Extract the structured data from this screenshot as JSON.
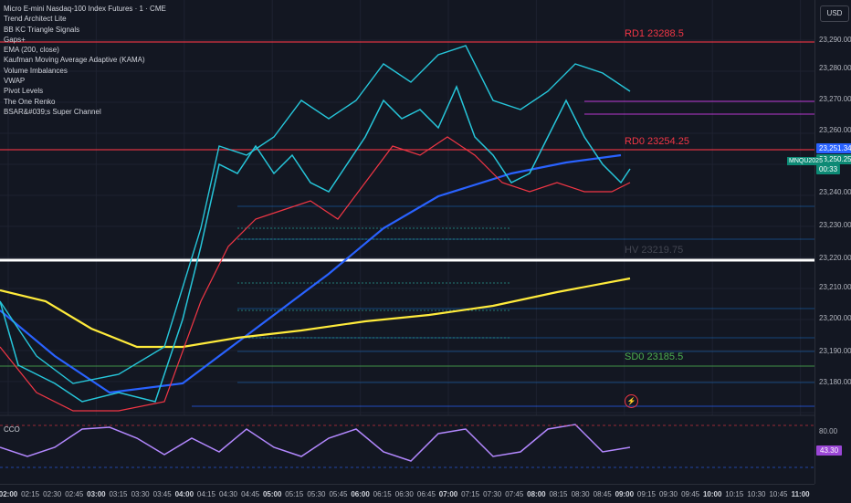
{
  "header": {
    "title": "Micro E-mini Nasdaq-100 Index Futures · 1 · CME",
    "currency_button": "USD"
  },
  "indicators": [
    "Trend Architect Lite",
    "BB KC Triangle Signals",
    "Gaps+",
    "EMA (200, close)",
    "Kaufman Moving Average Adaptive (KAMA)",
    "Volume Imbalances",
    "VWAP",
    "Pivot Levels",
    "The One Renko",
    "BSAR&#039;s Super Channel"
  ],
  "price_axis": {
    "ticks": [
      "23,290.00",
      "23,280.00",
      "23,270.00",
      "23,260.00",
      "23,250.00",
      "23,240.00",
      "23,230.00",
      "23,220.00",
      "23,210.00",
      "23,200.00",
      "23,190.00",
      "23,180.00"
    ],
    "tag_upper": "23,251.34",
    "tag_lower": "23,250.25",
    "countdown": "00:33",
    "symbol": "MNQU2025"
  },
  "levels": {
    "rd1": "RD1 23288.5",
    "rd0": "RD0 23254.25",
    "hv": "HV 23219.75",
    "sd0": "SD0 23185.5"
  },
  "time_axis": {
    "ticks": [
      {
        "label": "02:00",
        "bold": true
      },
      {
        "label": "02:15",
        "bold": false
      },
      {
        "label": "02:30",
        "bold": false
      },
      {
        "label": "02:45",
        "bold": false
      },
      {
        "label": "03:00",
        "bold": true
      },
      {
        "label": "03:15",
        "bold": false
      },
      {
        "label": "03:30",
        "bold": false
      },
      {
        "label": "03:45",
        "bold": false
      },
      {
        "label": "04:00",
        "bold": true
      },
      {
        "label": "04:15",
        "bold": false
      },
      {
        "label": "04:30",
        "bold": false
      },
      {
        "label": "04:45",
        "bold": false
      },
      {
        "label": "05:00",
        "bold": true
      },
      {
        "label": "05:15",
        "bold": false
      },
      {
        "label": "05:30",
        "bold": false
      },
      {
        "label": "05:45",
        "bold": false
      },
      {
        "label": "06:00",
        "bold": true
      },
      {
        "label": "06:15",
        "bold": false
      },
      {
        "label": "06:30",
        "bold": false
      },
      {
        "label": "06:45",
        "bold": false
      },
      {
        "label": "07:00",
        "bold": true
      },
      {
        "label": "07:15",
        "bold": false
      },
      {
        "label": "07:30",
        "bold": false
      },
      {
        "label": "07:45",
        "bold": false
      },
      {
        "label": "08:00",
        "bold": true
      },
      {
        "label": "08:15",
        "bold": false
      },
      {
        "label": "08:30",
        "bold": false
      },
      {
        "label": "08:45",
        "bold": false
      },
      {
        "label": "09:00",
        "bold": true
      },
      {
        "label": "09:15",
        "bold": false
      },
      {
        "label": "09:30",
        "bold": false
      },
      {
        "label": "09:45",
        "bold": false
      },
      {
        "label": "10:00",
        "bold": true
      },
      {
        "label": "10:15",
        "bold": false
      },
      {
        "label": "10:30",
        "bold": false
      },
      {
        "label": "10:45",
        "bold": false
      },
      {
        "label": "11:00",
        "bold": true
      }
    ]
  },
  "oscillator": {
    "label": "CCO",
    "tick_top": "80.00",
    "value": "43.30"
  },
  "colors": {
    "background": "#131722",
    "up": "#26c6da",
    "down": "#f23645",
    "ema": "#2962ff",
    "vwap": "#ffeb3b",
    "resistance": "#f23645",
    "support": "#4caf50"
  }
}
